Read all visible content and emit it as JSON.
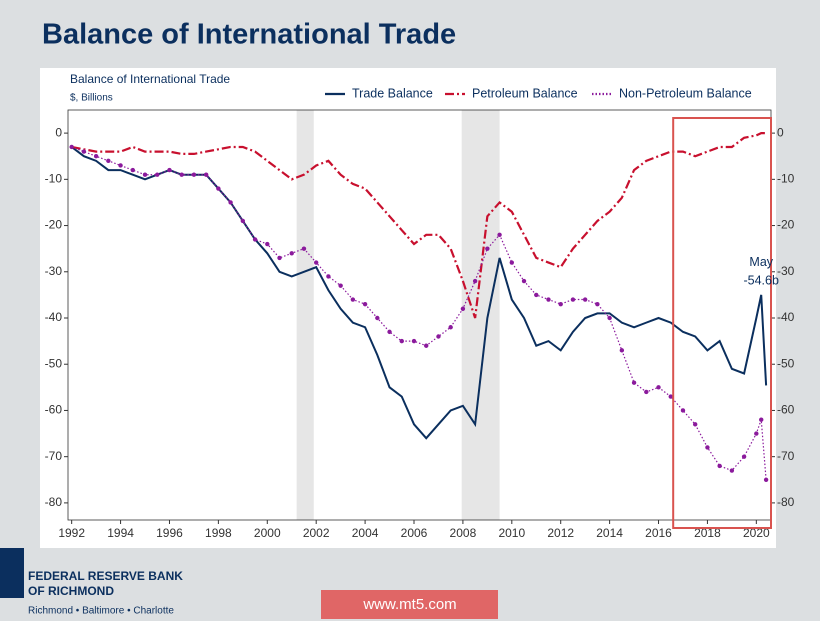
{
  "header": {
    "title": "Balance of International Trade"
  },
  "chart_data": {
    "type": "line",
    "title": "Balance of International Trade",
    "subtitle": "$, Billions",
    "x": [
      1992.0,
      1992.5,
      1993.0,
      1993.5,
      1994.0,
      1994.5,
      1995.0,
      1995.5,
      1996.0,
      1996.5,
      1997.0,
      1997.5,
      1998.0,
      1998.5,
      1999.0,
      1999.5,
      2000.0,
      2000.5,
      2001.0,
      2001.5,
      2002.0,
      2002.5,
      2003.0,
      2003.5,
      2004.0,
      2004.5,
      2005.0,
      2005.5,
      2006.0,
      2006.5,
      2007.0,
      2007.5,
      2008.0,
      2008.5,
      2009.0,
      2009.5,
      2010.0,
      2010.5,
      2011.0,
      2011.5,
      2012.0,
      2012.5,
      2013.0,
      2013.5,
      2014.0,
      2014.5,
      2015.0,
      2015.5,
      2016.0,
      2016.5,
      2017.0,
      2017.5,
      2018.0,
      2018.5,
      2019.0,
      2019.5,
      2020.0,
      2020.2,
      2020.4
    ],
    "series": [
      {
        "name": "Trade Balance",
        "color": "#0b2f5e",
        "style": "solid",
        "values": [
          -3,
          -5,
          -6,
          -8,
          -8,
          -9,
          -10,
          -9,
          -8,
          -9,
          -9,
          -9,
          -12,
          -15,
          -19,
          -23,
          -26,
          -30,
          -31,
          -30,
          -29,
          -34,
          -38,
          -41,
          -42,
          -48,
          -55,
          -57,
          -63,
          -66,
          -63,
          -60,
          -59,
          -63,
          -40,
          -27,
          -36,
          -40,
          -46,
          -45,
          -47,
          -43,
          -40,
          -39,
          -39,
          -41,
          -42,
          -41,
          -40,
          -41,
          -43,
          -44,
          -47,
          -45,
          -51,
          -52,
          -40,
          -35,
          -54.6
        ]
      },
      {
        "name": "Petroleum Balance",
        "color": "#c8102e",
        "style": "dashed",
        "values": [
          -3,
          -3.5,
          -4,
          -4,
          -4,
          -3,
          -4,
          -4,
          -4,
          -4.5,
          -4.5,
          -4,
          -3.5,
          -3,
          -3,
          -4,
          -6,
          -8,
          -10,
          -9,
          -7,
          -6,
          -9,
          -11,
          -12,
          -15,
          -18,
          -21,
          -24,
          -22,
          -22,
          -25,
          -32,
          -40,
          -18,
          -15,
          -17,
          -22,
          -27,
          -28,
          -29,
          -25,
          -22,
          -19,
          -17,
          -14,
          -8,
          -6,
          -5,
          -4,
          -4,
          -5,
          -4,
          -3,
          -3,
          -1,
          -0.5,
          0,
          0
        ]
      },
      {
        "name": "Non-Petroleum Balance",
        "color": "#8b1a9c",
        "style": "dotted",
        "values": [
          -3,
          -4,
          -5,
          -6,
          -7,
          -8,
          -9,
          -9,
          -8,
          -9,
          -9,
          -9,
          -12,
          -15,
          -19,
          -23,
          -24,
          -27,
          -26,
          -25,
          -28,
          -31,
          -33,
          -36,
          -37,
          -40,
          -43,
          -45,
          -45,
          -46,
          -44,
          -42,
          -38,
          -32,
          -25,
          -22,
          -28,
          -32,
          -35,
          -36,
          -37,
          -36,
          -36,
          -37,
          -40,
          -47,
          -54,
          -56,
          -55,
          -57,
          -60,
          -63,
          -68,
          -72,
          -73,
          -70,
          -65,
          -62,
          -75
        ]
      }
    ],
    "xlim": [
      1991.85,
      2020.6
    ],
    "xticks": [
      1992,
      1994,
      1996,
      1998,
      2000,
      2002,
      2004,
      2006,
      2008,
      2010,
      2012,
      2014,
      2016,
      2018,
      2020
    ],
    "ylim": [
      -83.7,
      5
    ],
    "yticks": [
      0,
      -10,
      -20,
      -30,
      -40,
      -50,
      -60,
      -70,
      -80
    ],
    "y2lim": [
      -83.7,
      5
    ],
    "y2ticks": [
      0,
      -10,
      -20,
      -30,
      -40,
      -50,
      -60,
      -70,
      -80
    ],
    "recessions": [
      [
        2001.2,
        2001.9
      ],
      [
        2007.95,
        2009.5
      ]
    ],
    "highlight": [
      2016.6,
      2020.6
    ],
    "annotations": [
      {
        "text": "May",
        "x": 2020.2,
        "y": -28
      },
      {
        "text": "-54.6b",
        "x": 2020.2,
        "y": -32
      }
    ],
    "legend": "top"
  },
  "footer": {
    "bank": "FEDERAL RESERVE BANK",
    "bank2": "OF RICHMOND",
    "cities": "Richmond • Baltimore • Charlotte",
    "watermark": "www.mt5.com"
  }
}
